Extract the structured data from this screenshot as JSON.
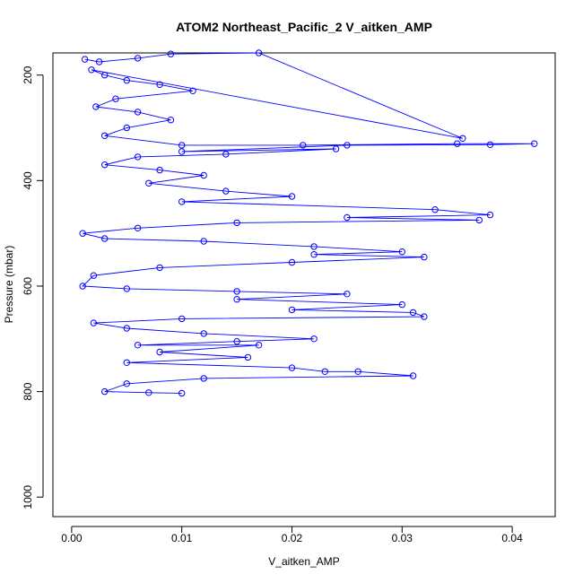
{
  "chart_data": {
    "type": "scatter",
    "title": "ATOM2 Northeast_Pacific_2 V_aitken_AMP",
    "xlabel": "V_aitken_AMP",
    "ylabel": "Pressure (mbar)",
    "xlim": [
      -0.0017,
      0.0439
    ],
    "ylim": [
      1037,
      158
    ],
    "y_inverted": true,
    "connected": true,
    "marker": "open-circle",
    "grid": false,
    "legend": "none",
    "colors": {
      "series": "#0000ff",
      "axes": "#000000",
      "background": "#ffffff"
    },
    "x_ticks": [
      0.0,
      0.01,
      0.02,
      0.03,
      0.04
    ],
    "x_tick_labels": [
      "0.00",
      "0.01",
      "0.02",
      "0.03",
      "0.04"
    ],
    "y_ticks": [
      200,
      400,
      600,
      800,
      1000
    ],
    "y_tick_labels": [
      "200",
      "400",
      "600",
      "800",
      "1000"
    ],
    "series": [
      {
        "points": [
          [
            0.0012,
            170
          ],
          [
            0.0025,
            175
          ],
          [
            0.006,
            168
          ],
          [
            0.009,
            160
          ],
          [
            0.017,
            158
          ],
          [
            0.0355,
            320
          ],
          [
            0.0018,
            190
          ],
          [
            0.003,
            200
          ],
          [
            0.005,
            210
          ],
          [
            0.008,
            218
          ],
          [
            0.011,
            230
          ],
          [
            0.004,
            245
          ],
          [
            0.0022,
            260
          ],
          [
            0.006,
            270
          ],
          [
            0.009,
            285
          ],
          [
            0.005,
            300
          ],
          [
            0.003,
            315
          ],
          [
            0.01,
            333
          ],
          [
            0.021,
            333
          ],
          [
            0.035,
            330
          ],
          [
            0.042,
            330
          ],
          [
            0.038,
            332
          ],
          [
            0.025,
            333
          ],
          [
            0.01,
            345
          ],
          [
            0.024,
            340
          ],
          [
            0.014,
            350
          ],
          [
            0.006,
            355
          ],
          [
            0.003,
            370
          ],
          [
            0.008,
            380
          ],
          [
            0.012,
            390
          ],
          [
            0.007,
            405
          ],
          [
            0.014,
            420
          ],
          [
            0.02,
            430
          ],
          [
            0.01,
            440
          ],
          [
            0.033,
            455
          ],
          [
            0.038,
            465
          ],
          [
            0.025,
            470
          ],
          [
            0.037,
            475
          ],
          [
            0.015,
            480
          ],
          [
            0.006,
            490
          ],
          [
            0.001,
            500
          ],
          [
            0.003,
            510
          ],
          [
            0.012,
            515
          ],
          [
            0.022,
            525
          ],
          [
            0.03,
            535
          ],
          [
            0.022,
            540
          ],
          [
            0.032,
            545
          ],
          [
            0.02,
            555
          ],
          [
            0.008,
            565
          ],
          [
            0.002,
            580
          ],
          [
            0.001,
            600
          ],
          [
            0.005,
            605
          ],
          [
            0.015,
            610
          ],
          [
            0.025,
            615
          ],
          [
            0.015,
            625
          ],
          [
            0.03,
            635
          ],
          [
            0.02,
            645
          ],
          [
            0.031,
            650
          ],
          [
            0.032,
            658
          ],
          [
            0.01,
            662
          ],
          [
            0.002,
            670
          ],
          [
            0.005,
            680
          ],
          [
            0.012,
            690
          ],
          [
            0.022,
            700
          ],
          [
            0.015,
            705
          ],
          [
            0.006,
            712
          ],
          [
            0.017,
            712
          ],
          [
            0.008,
            725
          ],
          [
            0.016,
            735
          ],
          [
            0.005,
            745
          ],
          [
            0.02,
            755
          ],
          [
            0.023,
            762
          ],
          [
            0.026,
            762
          ],
          [
            0.031,
            770
          ],
          [
            0.012,
            775
          ],
          [
            0.005,
            785
          ],
          [
            0.003,
            800
          ],
          [
            0.007,
            802
          ],
          [
            0.01,
            803
          ]
        ]
      }
    ]
  }
}
